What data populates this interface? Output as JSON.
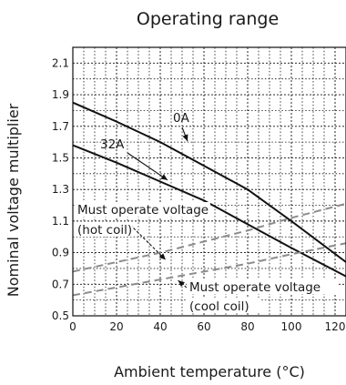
{
  "chart_data": {
    "type": "line",
    "title": "Operating range",
    "xlabel": "Ambient temperature (°C)",
    "ylabel": "Nominal voltage multiplier",
    "xlim": [
      0,
      125
    ],
    "ylim": [
      0.5,
      2.2
    ],
    "x_ticks": [
      0,
      20,
      40,
      60,
      80,
      100,
      120
    ],
    "y_ticks": [
      0.5,
      0.7,
      0.9,
      1.1,
      1.3,
      1.5,
      1.7,
      1.9,
      2.1
    ],
    "x_tick_labels": [
      "0",
      "20",
      "40",
      "60",
      "80",
      "100",
      "120"
    ],
    "y_tick_labels": [
      "0.5",
      "0.7",
      "0.9",
      "1.1",
      "1.3",
      "1.5",
      "1.7",
      "1.9",
      "2.1"
    ],
    "grid": true,
    "series": [
      {
        "name": "0A",
        "style": "solid",
        "color": "#111111",
        "points": [
          [
            0,
            1.85
          ],
          [
            20,
            1.73
          ],
          [
            40,
            1.6
          ],
          [
            60,
            1.45
          ],
          [
            80,
            1.3
          ],
          [
            100,
            1.1
          ],
          [
            125,
            0.84
          ]
        ]
      },
      {
        "name": "32A",
        "style": "solid",
        "color": "#111111",
        "points": [
          [
            0,
            1.58
          ],
          [
            20,
            1.47
          ],
          [
            40,
            1.35
          ],
          [
            60,
            1.23
          ],
          [
            80,
            1.08
          ],
          [
            100,
            0.93
          ],
          [
            125,
            0.75
          ]
        ]
      },
      {
        "name": "Must operate voltage (hot coil)",
        "style": "dashed",
        "color": "#8c8c8c",
        "points": [
          [
            0,
            0.78
          ],
          [
            20,
            0.84
          ],
          [
            40,
            0.9
          ],
          [
            60,
            0.97
          ],
          [
            80,
            1.04
          ],
          [
            100,
            1.12
          ],
          [
            125,
            1.21
          ]
        ]
      },
      {
        "name": "Must operate voltage (cool coil)",
        "style": "dashed",
        "color": "#8c8c8c",
        "points": [
          [
            0,
            0.63
          ],
          [
            20,
            0.68
          ],
          [
            40,
            0.73
          ],
          [
            60,
            0.78
          ],
          [
            80,
            0.83
          ],
          [
            100,
            0.89
          ],
          [
            125,
            0.96
          ]
        ]
      }
    ],
    "annotations": [
      {
        "text": "0A",
        "points_to": [
          40,
          1.6
        ]
      },
      {
        "text": "32A",
        "points_to": [
          30,
          1.4
        ]
      },
      {
        "lines": [
          "Must operate voltage",
          "(hot coil)"
        ],
        "points_to": [
          30,
          0.86
        ]
      },
      {
        "lines": [
          "Must operate voltage",
          "(cool coil)"
        ],
        "points_to": [
          34,
          0.73
        ]
      }
    ]
  }
}
